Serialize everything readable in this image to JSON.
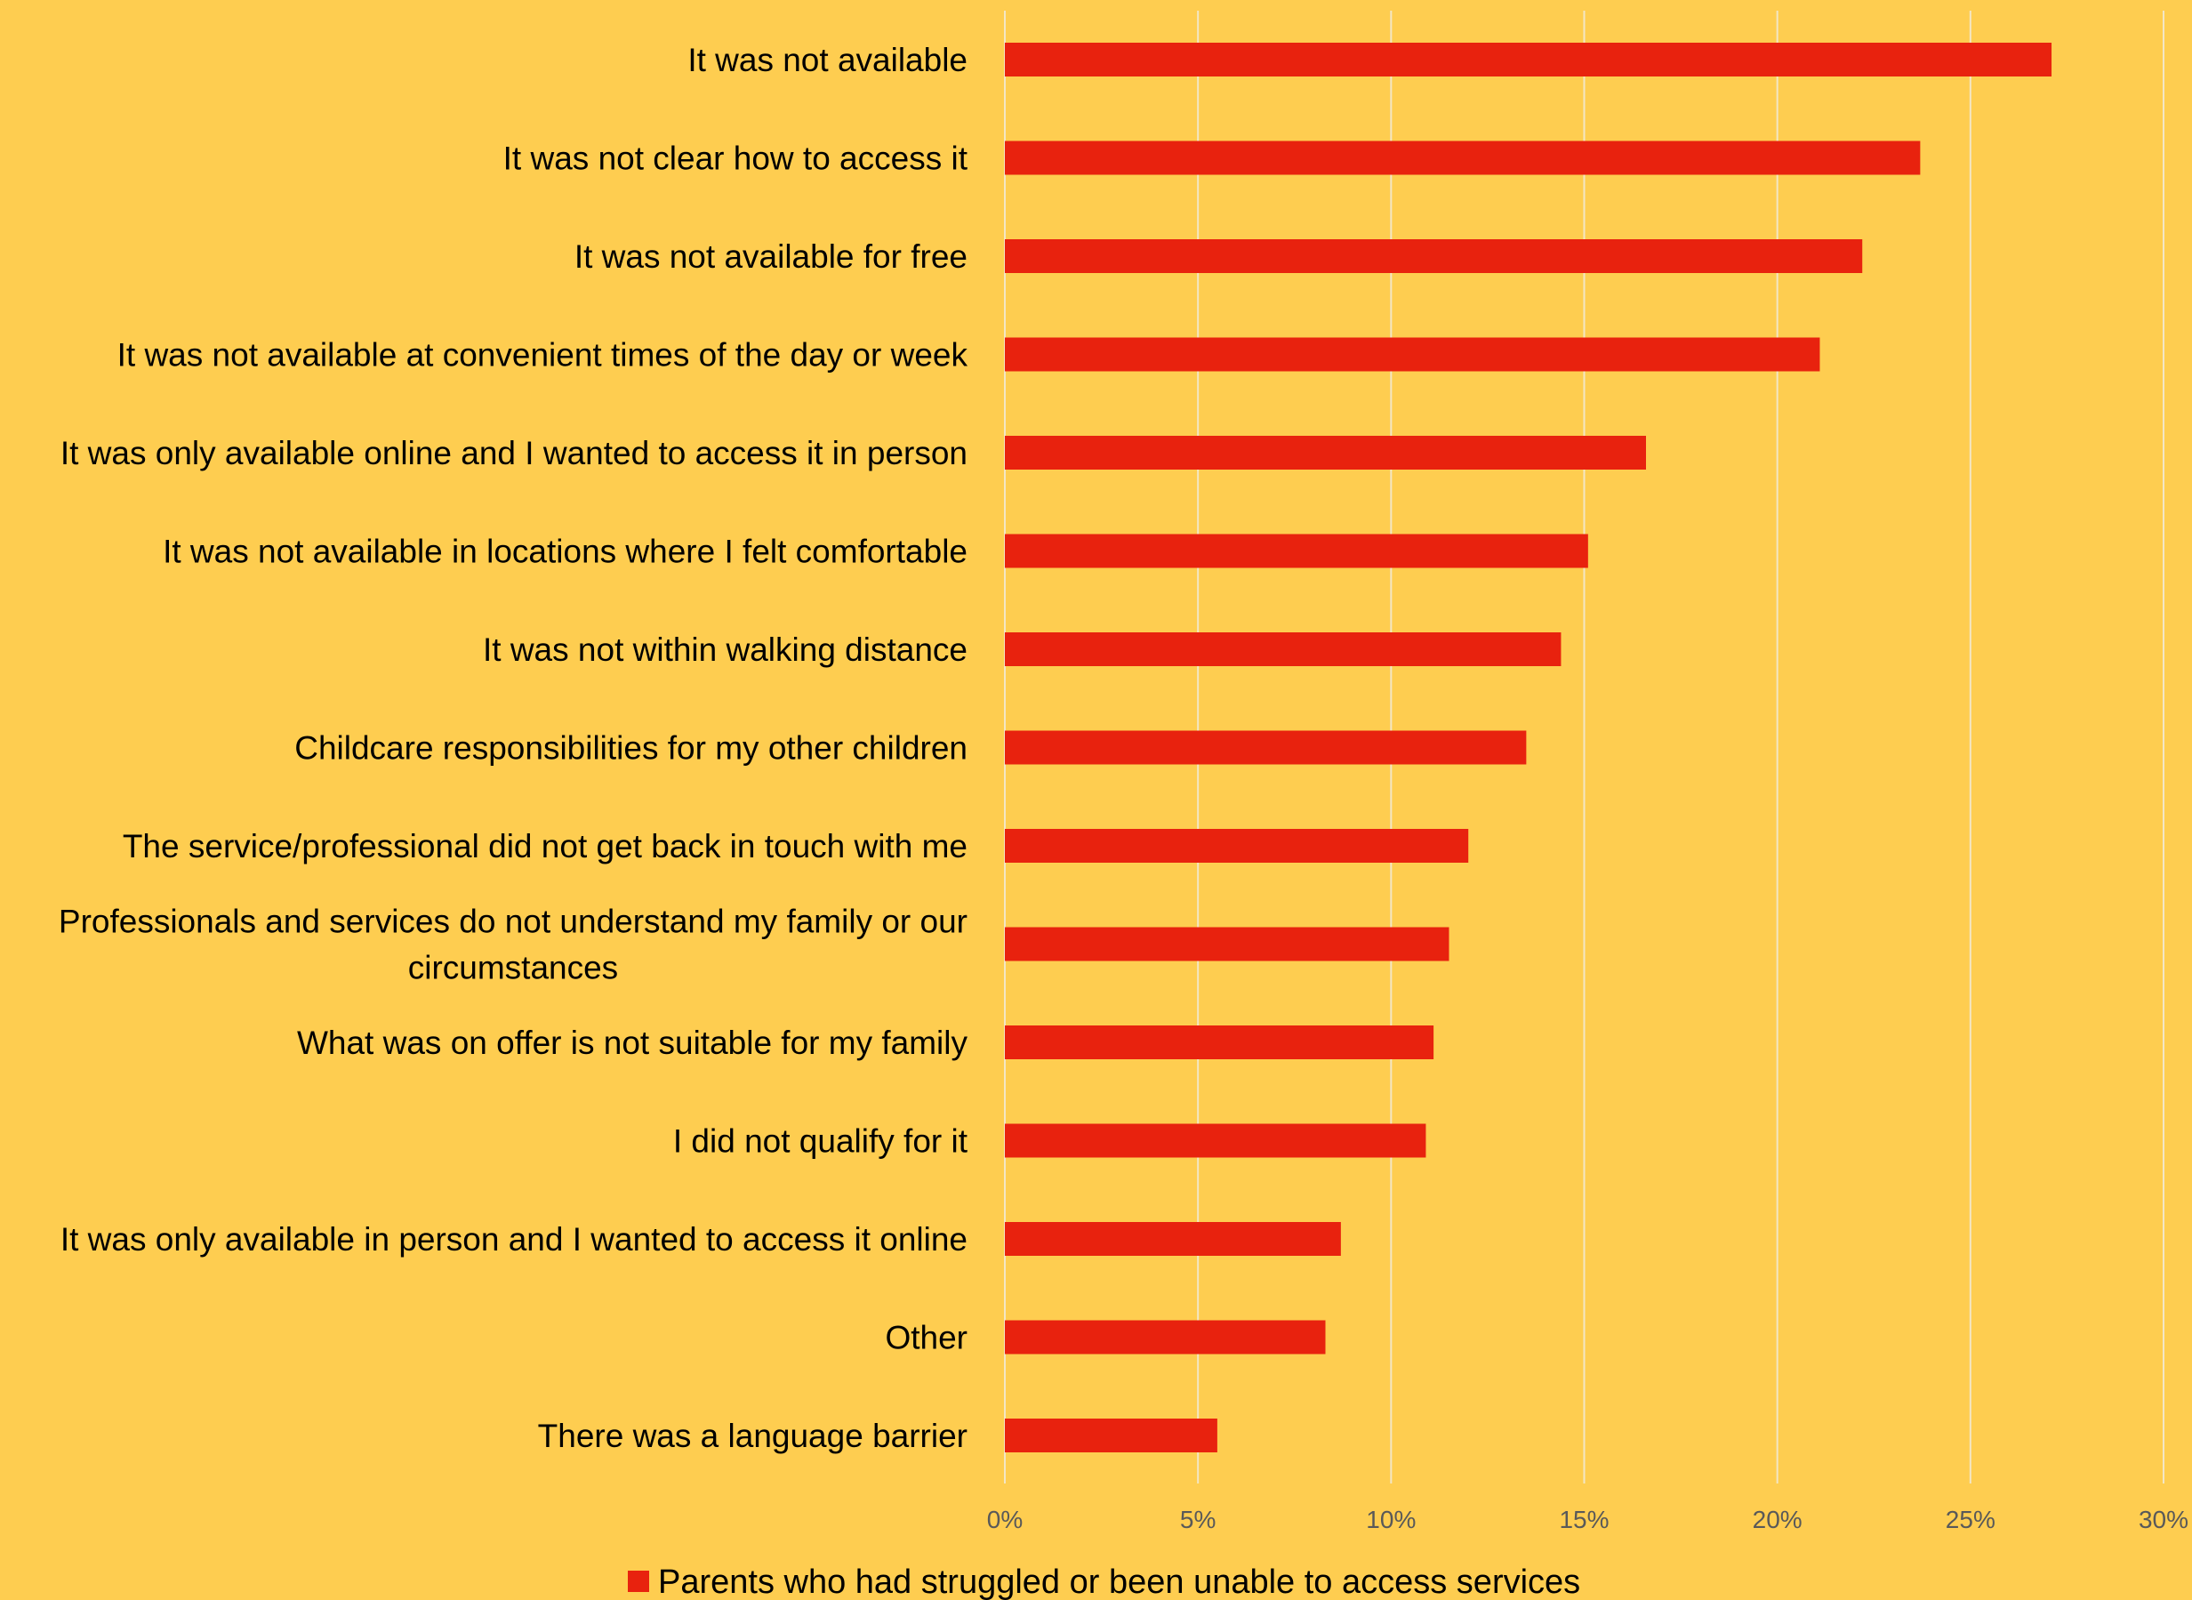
{
  "colors": {
    "background": "#FECD50",
    "bar": "#E8220E",
    "gridline": "#F3E6C4"
  },
  "chart_data": {
    "type": "bar",
    "orientation": "horizontal",
    "title": "",
    "xlabel": "",
    "ylabel": "",
    "categories": [
      "It was not available",
      "It was not clear how to access it",
      "It was not available for free",
      "It was not available at convenient times of the day or week",
      "It was only available online and I wanted to access it in person",
      "It was not available in locations where I felt comfortable",
      "It was not within walking distance",
      "Childcare responsibilities for my other children",
      "The service/professional did not get back in touch with me",
      "Professionals and services do not understand my family or our circumstances",
      "What was on offer is not suitable for my family",
      "I did not qualify for it",
      "It was only available in person and I wanted to access it online",
      "Other",
      "There was a language barrier"
    ],
    "category_lines": [
      [
        "It was not available"
      ],
      [
        "It was not clear how to access it"
      ],
      [
        "It was not available for free"
      ],
      [
        "It was not available at convenient times of the day or week"
      ],
      [
        "It was only available online and I wanted to access it in person"
      ],
      [
        "It was not available in locations where I felt comfortable"
      ],
      [
        "It was not within walking distance"
      ],
      [
        "Childcare responsibilities for my other children"
      ],
      [
        "The service/professional did not get back in touch with me"
      ],
      [
        "Professionals and services do not understand my family or our",
        "circumstances"
      ],
      [
        "What was on offer is not suitable for my family"
      ],
      [
        "I did not qualify for it"
      ],
      [
        "It was only available in person and I wanted to access it online"
      ],
      [
        "Other"
      ],
      [
        "There was a language barrier"
      ]
    ],
    "series": [
      {
        "name": "Parents who had struggled or been unable to access services",
        "values": [
          27.1,
          23.7,
          22.2,
          21.1,
          16.6,
          15.1,
          14.4,
          13.5,
          12.0,
          11.5,
          11.1,
          10.9,
          8.7,
          8.3,
          5.5
        ]
      }
    ],
    "xlim": [
      0,
      30
    ],
    "ticks": [
      0,
      5,
      10,
      15,
      20,
      25,
      30
    ],
    "tick_labels": [
      "0%",
      "5%",
      "10%",
      "15%",
      "20%",
      "25%",
      "30%"
    ],
    "grid": true,
    "legend_position": "bottom"
  }
}
